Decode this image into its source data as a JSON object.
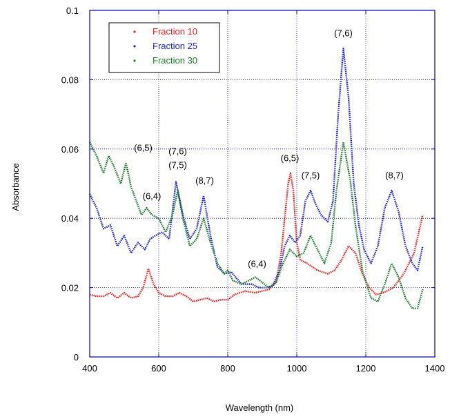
{
  "chart_data": {
    "type": "line",
    "xlabel": "Wavelength (nm)",
    "ylabel": "Absorbance",
    "xlim": [
      400,
      1400
    ],
    "ylim": [
      0,
      0.1
    ],
    "xticks": [
      "400",
      "600",
      "800",
      "1000",
      "1200",
      "1400"
    ],
    "yticks": [
      "0",
      "0.02",
      "0.04",
      "0.06",
      "0.08",
      "0.1"
    ],
    "grid": true,
    "legend_position": "top-left",
    "series": [
      {
        "name": "Fraction 10",
        "color": "#e8201f",
        "x": [
          400,
          420,
          440,
          460,
          480,
          500,
          520,
          540,
          555,
          570,
          585,
          600,
          620,
          640,
          660,
          680,
          700,
          720,
          740,
          760,
          780,
          800,
          820,
          850,
          880,
          900,
          920,
          940,
          955,
          965,
          975,
          982,
          990,
          1000,
          1010,
          1030,
          1060,
          1090,
          1110,
          1130,
          1150,
          1170,
          1190,
          1210,
          1230,
          1250,
          1280,
          1310,
          1340,
          1365
        ],
        "y": [
          0.018,
          0.0175,
          0.0175,
          0.0185,
          0.017,
          0.0185,
          0.017,
          0.0175,
          0.02,
          0.0255,
          0.021,
          0.0185,
          0.0175,
          0.0175,
          0.0185,
          0.0175,
          0.016,
          0.0165,
          0.017,
          0.016,
          0.0165,
          0.0165,
          0.018,
          0.019,
          0.0185,
          0.019,
          0.0195,
          0.0215,
          0.03,
          0.04,
          0.05,
          0.053,
          0.048,
          0.033,
          0.028,
          0.027,
          0.025,
          0.024,
          0.025,
          0.028,
          0.032,
          0.03,
          0.024,
          0.02,
          0.018,
          0.0185,
          0.02,
          0.024,
          0.03,
          0.041
        ]
      },
      {
        "name": "Fraction 25",
        "color": "#1f27c8",
        "x": [
          400,
          420,
          440,
          460,
          480,
          500,
          520,
          540,
          560,
          575,
          590,
          610,
          630,
          650,
          670,
          690,
          710,
          730,
          750,
          770,
          790,
          810,
          840,
          870,
          890,
          910,
          930,
          950,
          965,
          980,
          995,
          1010,
          1025,
          1040,
          1055,
          1070,
          1090,
          1105,
          1120,
          1135,
          1150,
          1165,
          1180,
          1195,
          1215,
          1235,
          1255,
          1275,
          1295,
          1315,
          1335,
          1350,
          1365
        ],
        "y": [
          0.047,
          0.043,
          0.037,
          0.038,
          0.032,
          0.035,
          0.03,
          0.033,
          0.031,
          0.034,
          0.035,
          0.036,
          0.034,
          0.0505,
          0.041,
          0.034,
          0.037,
          0.0465,
          0.035,
          0.026,
          0.024,
          0.0245,
          0.021,
          0.021,
          0.02,
          0.02,
          0.0205,
          0.025,
          0.032,
          0.035,
          0.033,
          0.035,
          0.045,
          0.048,
          0.044,
          0.041,
          0.039,
          0.045,
          0.07,
          0.089,
          0.075,
          0.05,
          0.038,
          0.031,
          0.027,
          0.032,
          0.043,
          0.048,
          0.042,
          0.032,
          0.027,
          0.025,
          0.032
        ]
      },
      {
        "name": "Fraction 30",
        "color": "#1c7a2a",
        "x": [
          400,
          420,
          440,
          455,
          470,
          490,
          505,
          520,
          535,
          550,
          565,
          580,
          600,
          620,
          640,
          655,
          670,
          690,
          710,
          730,
          750,
          770,
          790,
          800,
          815,
          840,
          860,
          880,
          900,
          920,
          940,
          960,
          980,
          1000,
          1020,
          1040,
          1060,
          1080,
          1100,
          1115,
          1135,
          1155,
          1170,
          1190,
          1215,
          1235,
          1255,
          1275,
          1295,
          1315,
          1335,
          1350,
          1365
        ],
        "y": [
          0.062,
          0.058,
          0.053,
          0.058,
          0.055,
          0.05,
          0.056,
          0.049,
          0.045,
          0.041,
          0.043,
          0.041,
          0.04,
          0.036,
          0.041,
          0.048,
          0.04,
          0.032,
          0.034,
          0.04,
          0.033,
          0.027,
          0.024,
          0.025,
          0.022,
          0.021,
          0.022,
          0.023,
          0.0215,
          0.02,
          0.0215,
          0.027,
          0.031,
          0.029,
          0.03,
          0.035,
          0.031,
          0.027,
          0.033,
          0.048,
          0.062,
          0.051,
          0.038,
          0.025,
          0.017,
          0.016,
          0.021,
          0.027,
          0.023,
          0.017,
          0.014,
          0.014,
          0.0195
        ]
      }
    ],
    "annotations": [
      {
        "text": "(6,5)",
        "x": 555,
        "y": 0.0595
      },
      {
        "text": "(6,4)",
        "x": 580,
        "y": 0.0455
      },
      {
        "text": "(7,6)",
        "x": 655,
        "y": 0.0585
      },
      {
        "text": "(7,5)",
        "x": 655,
        "y": 0.0545
      },
      {
        "text": "(8,7)",
        "x": 733,
        "y": 0.05
      },
      {
        "text": "(6,4)",
        "x": 885,
        "y": 0.026
      },
      {
        "text": "(6,5)",
        "x": 980,
        "y": 0.0565
      },
      {
        "text": "(7,5)",
        "x": 1040,
        "y": 0.0515
      },
      {
        "text": "(7,6)",
        "x": 1135,
        "y": 0.0925
      },
      {
        "text": "(8,7)",
        "x": 1283,
        "y": 0.0515
      }
    ]
  }
}
